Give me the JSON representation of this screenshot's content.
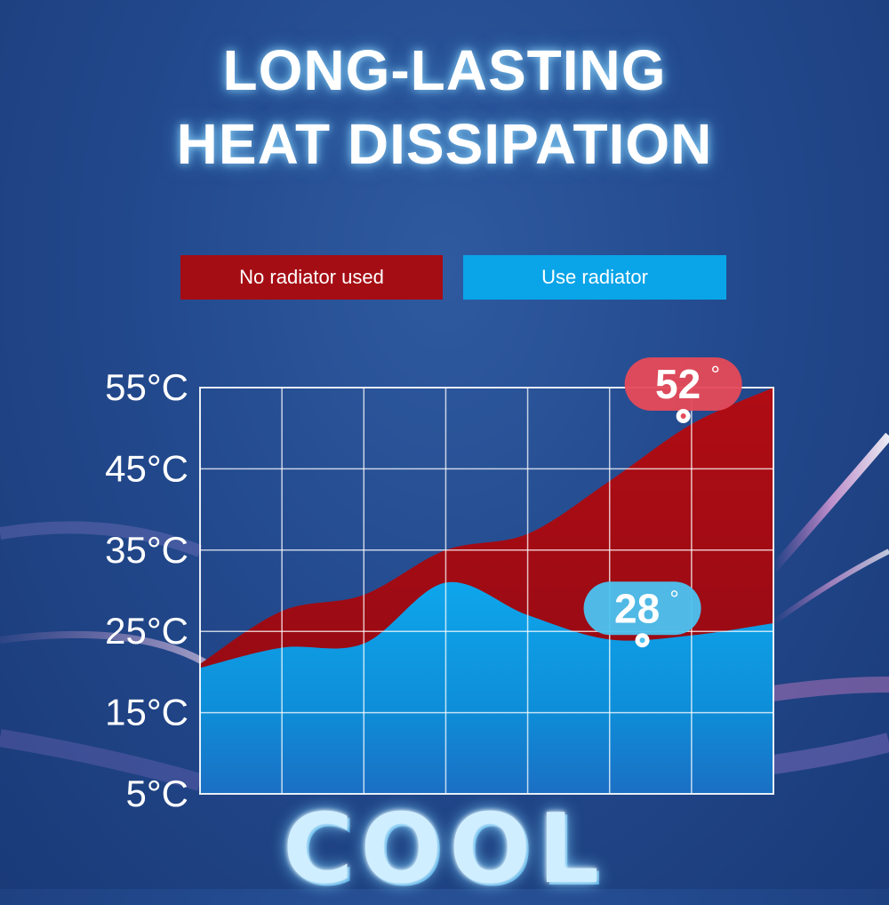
{
  "title": {
    "line1": "LONG-LASTING",
    "line2": "HEAT DISSIPATION"
  },
  "colors": {
    "no_radiator": "#a50d14",
    "use_radiator": "#0aa4e8",
    "red_badge": "#e64a58",
    "blue_badge": "#4cc3f0"
  },
  "chart_data": {
    "type": "area",
    "ylim": [
      5,
      55
    ],
    "y_ticks": [
      "55°C",
      "45°C",
      "35°C",
      "25°C",
      "15°C",
      "5°C"
    ],
    "y_tick_values": [
      55,
      45,
      35,
      25,
      15,
      5
    ],
    "grid": true,
    "legend_placement": "top",
    "x": [
      0,
      1,
      2,
      3,
      4,
      5,
      6,
      7
    ],
    "series": [
      {
        "name": "No radiator used",
        "values": [
          21,
          27.5,
          29.5,
          35,
          37,
          43.5,
          50.5,
          55
        ]
      },
      {
        "name": "Use radiator",
        "values": [
          20.5,
          23,
          23.5,
          31,
          27,
          24,
          24.5,
          26
        ]
      }
    ],
    "annotations": [
      {
        "label": "52",
        "unit": "°",
        "series": "No radiator used",
        "x": 5.9,
        "y": 51.5
      },
      {
        "label": "28",
        "unit": "°",
        "series": "Use radiator",
        "x": 5.4,
        "y": 23.9
      }
    ]
  },
  "footer": {
    "text": "COOL"
  }
}
